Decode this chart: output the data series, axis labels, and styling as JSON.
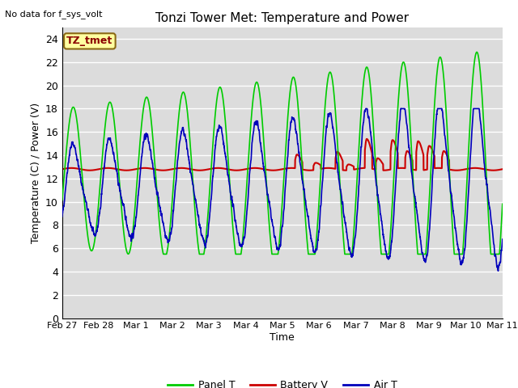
{
  "title": "Tonzi Tower Met: Temperature and Power",
  "xlabel": "Time",
  "ylabel": "Temperature (C) / Power (V)",
  "no_data_text": "No data for f_sys_volt",
  "legend_label_text": "TZ_tmet",
  "ylim": [
    0,
    25
  ],
  "yticks": [
    0,
    2,
    4,
    6,
    8,
    10,
    12,
    14,
    16,
    18,
    20,
    22,
    24
  ],
  "xtick_labels": [
    "Feb 27",
    "Feb 28",
    "Mar 1",
    "Mar 2",
    "Mar 3",
    "Mar 4",
    "Mar 5",
    "Mar 6",
    "Mar 7",
    "Mar 8",
    "Mar 9",
    "Mar 10",
    "Mar 11"
  ],
  "panel_color": "#00CC00",
  "battery_color": "#CC0000",
  "air_color": "#0000BB",
  "bg_color": "#DCDCDC",
  "fig_bg_color": "#FFFFFF",
  "grid_color": "#FFFFFF",
  "legend_labels": [
    "Panel T",
    "Battery V",
    "Air T"
  ]
}
